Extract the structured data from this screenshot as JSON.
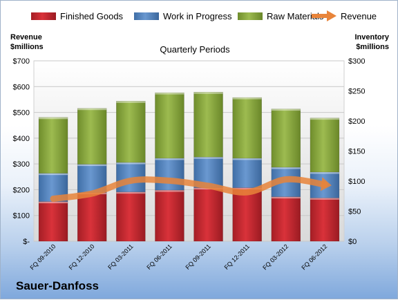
{
  "chart_data": {
    "type": "bar",
    "stacked": true,
    "title": "Quarterly Periods",
    "categories": [
      "FQ 09-2010",
      "FQ 12-2010",
      "FQ 03-2011",
      "FQ 06-2011",
      "FQ 09-2011",
      "FQ 12-2011",
      "FQ 03-2012",
      "FQ 06-2012"
    ],
    "series": [
      {
        "name": "Finished Goods",
        "color": "#c0242c",
        "values": [
          66,
          81,
          82,
          85,
          89,
          89,
          74,
          72
        ]
      },
      {
        "name": "Work in Progress",
        "color": "#4f81bd",
        "values": [
          47,
          47,
          49,
          53,
          51,
          49,
          49,
          43
        ]
      },
      {
        "name": "Raw Materials",
        "color": "#8aaa3c",
        "values": [
          93,
          93,
          102,
          109,
          108,
          101,
          97,
          90
        ]
      }
    ],
    "line_series": {
      "name": "Revenue",
      "color": "#e8843a",
      "axis": "left",
      "values": [
        165,
        185,
        235,
        235,
        215,
        190,
        240,
        220
      ]
    },
    "left_axis": {
      "label": "Revenue $millions",
      "label_lines": [
        "Revenue",
        "$millions"
      ],
      "range": [
        0,
        700
      ],
      "ticks": [
        "$-",
        "$100",
        "$200",
        "$300",
        "$400",
        "$500",
        "$600",
        "$700"
      ]
    },
    "right_axis": {
      "label": "Inventory $millions",
      "label_lines": [
        "Inventory",
        "$millions"
      ],
      "range": [
        0,
        300
      ],
      "ticks": [
        "$0",
        "$50",
        "$100",
        "$150",
        "$200",
        "$250",
        "$300"
      ]
    },
    "legend_position": "top",
    "grid": true
  },
  "brand": "Sauer-Danfoss"
}
